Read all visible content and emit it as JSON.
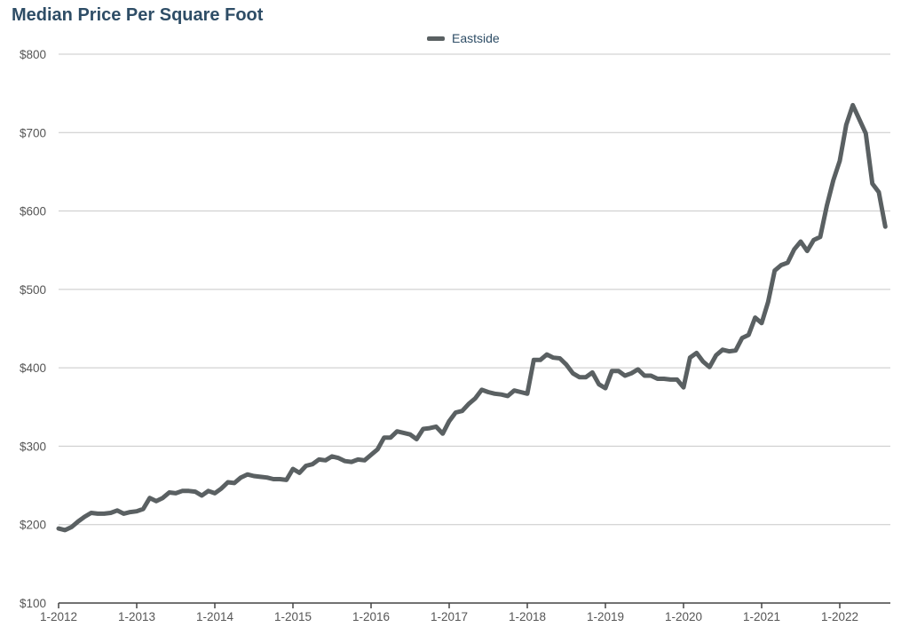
{
  "chart_data": {
    "type": "line",
    "title": "Median Price Per Square Foot",
    "xlabel": "",
    "ylabel": "",
    "ylim": [
      100,
      800
    ],
    "yticks": [
      100,
      200,
      300,
      400,
      500,
      600,
      700,
      800
    ],
    "ytick_labels": [
      "$100",
      "$200",
      "$300",
      "$400",
      "$500",
      "$600",
      "$700",
      "$800"
    ],
    "xticks": [
      "1-2012",
      "1-2013",
      "1-2014",
      "1-2015",
      "1-2016",
      "1-2017",
      "1-2018",
      "1-2019",
      "1-2020",
      "1-2021",
      "1-2022"
    ],
    "x_start": "2012-01",
    "grid": true,
    "legend": "top-center",
    "line_color": "#5a6062",
    "series": [
      {
        "name": "Eastside",
        "values": [
          195,
          193,
          197,
          204,
          210,
          215,
          214,
          214,
          215,
          218,
          214,
          216,
          217,
          220,
          234,
          230,
          234,
          241,
          240,
          243,
          243,
          242,
          237,
          243,
          240,
          246,
          254,
          253,
          260,
          264,
          262,
          261,
          260,
          258,
          258,
          257,
          271,
          266,
          275,
          277,
          283,
          282,
          287,
          285,
          281,
          280,
          283,
          282,
          289,
          296,
          311,
          311,
          319,
          317,
          315,
          309,
          322,
          323,
          325,
          316,
          332,
          343,
          345,
          354,
          361,
          372,
          369,
          367,
          366,
          364,
          371,
          369,
          367,
          410,
          410,
          417,
          413,
          412,
          404,
          393,
          388,
          388,
          394,
          379,
          374,
          396,
          396,
          390,
          393,
          398,
          390,
          390,
          386,
          386,
          385,
          385,
          375,
          413,
          419,
          408,
          401,
          416,
          423,
          421,
          422,
          438,
          442,
          464,
          457,
          484,
          524,
          531,
          534,
          551,
          561,
          549,
          563,
          567,
          606,
          639,
          664,
          710,
          735,
          717,
          699,
          635,
          624,
          580
        ]
      }
    ]
  }
}
